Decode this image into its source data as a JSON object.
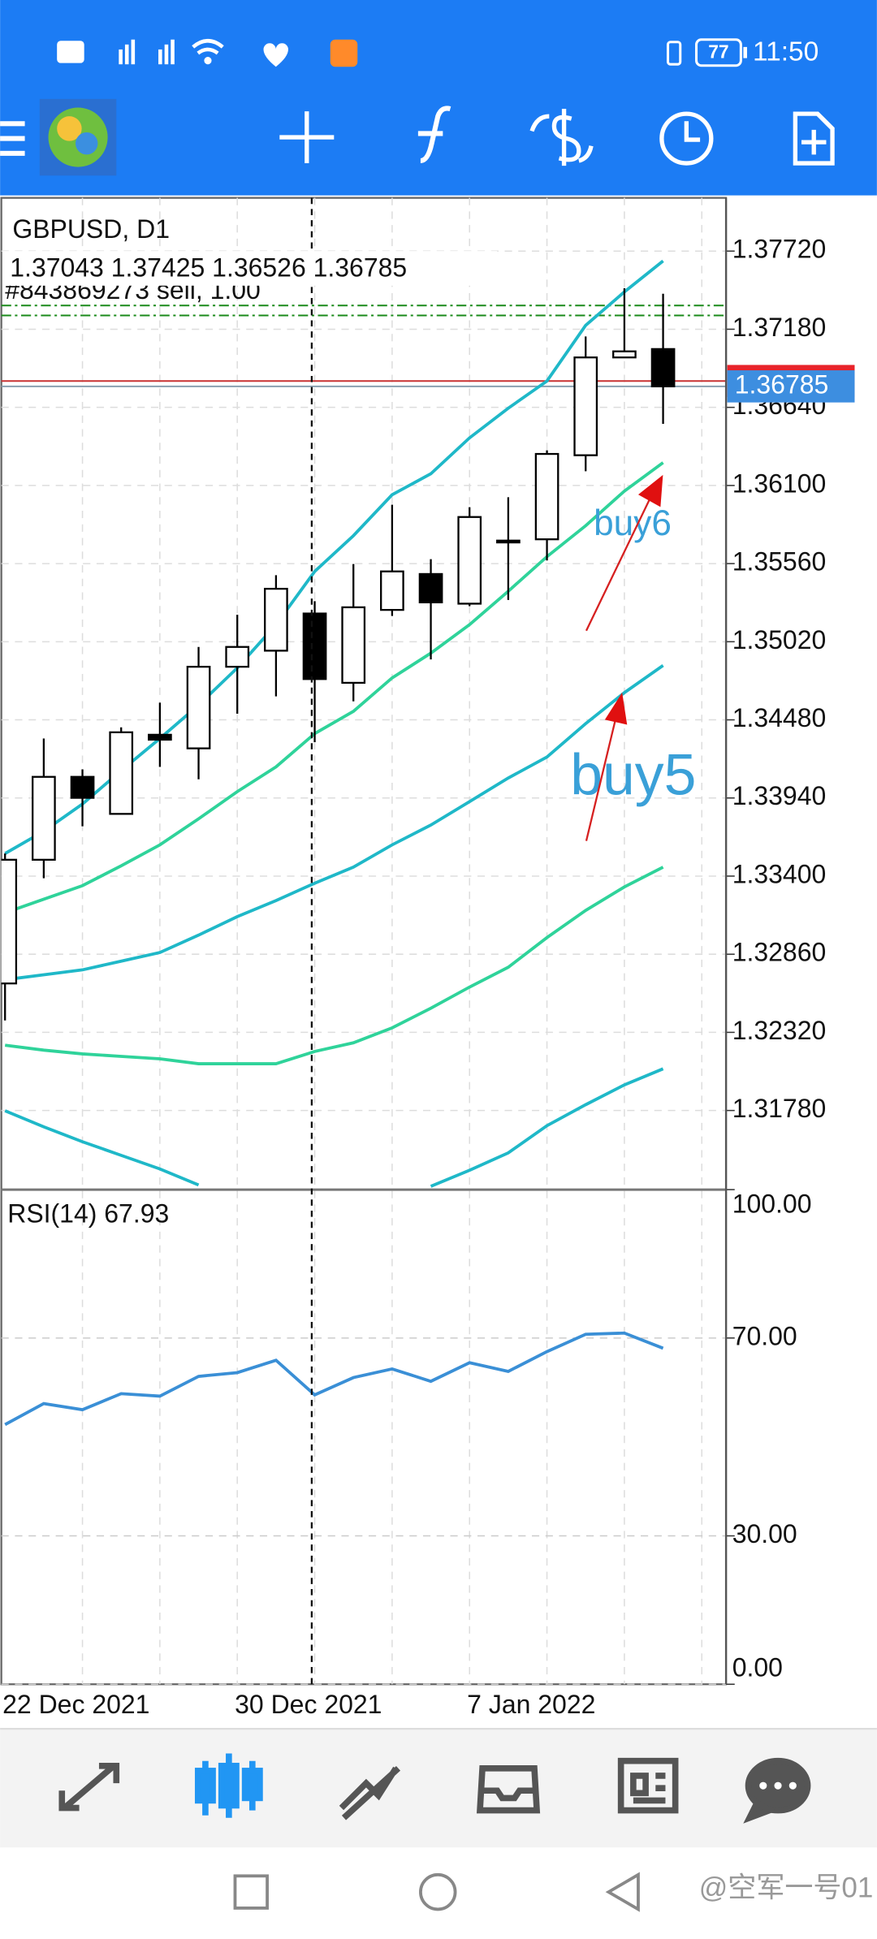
{
  "status_bar": {
    "time": "11:50",
    "battery": "77"
  },
  "watermark": "@空军一号01",
  "chart_data": [
    {
      "type": "candlestick",
      "title": "GBPUSD, D1",
      "subtitle": "1.37043 1.37425 1.36526 1.36785",
      "order_label": "#843869273 sell, 1.00",
      "annotations": [
        "buy6",
        "buy5"
      ],
      "categories": [
        "22 Dec 2021",
        null,
        null,
        null,
        null,
        null,
        "30 Dec 2021",
        null,
        null,
        null,
        null,
        null,
        "7 Jan 2022",
        null,
        null,
        null,
        null,
        null
      ],
      "open": [
        1.32658,
        1.33513,
        1.34086,
        1.3383,
        1.34377,
        1.34283,
        1.34847,
        1.34958,
        1.35215,
        1.34736,
        1.3524,
        1.35488,
        1.35283,
        1.35719,
        1.35728,
        1.36309,
        1.36985,
        1.37043
      ],
      "high": [
        1.33556,
        1.34351,
        1.34138,
        1.34428,
        1.34599,
        1.34984,
        1.35206,
        1.3548,
        1.353,
        1.35557,
        1.35967,
        1.35591,
        1.3595,
        1.36019,
        1.36343,
        1.3713,
        1.37463,
        1.37425
      ],
      "low": [
        1.32402,
        1.33385,
        1.33744,
        1.3383,
        1.34155,
        1.34069,
        1.34522,
        1.34642,
        1.34326,
        1.34608,
        1.35198,
        1.34898,
        1.35266,
        1.35309,
        1.35582,
        1.36198,
        1.36985,
        1.36526
      ],
      "close": [
        1.33513,
        1.34086,
        1.33941,
        1.34394,
        1.34343,
        1.34847,
        1.34984,
        1.35386,
        1.34762,
        1.35258,
        1.35506,
        1.35292,
        1.35882,
        1.35719,
        1.36318,
        1.36985,
        1.37027,
        1.36785
      ],
      "up_color": "#ffffff",
      "down_color": "#000000",
      "overlays": [
        {
          "color": "#1fb8c8",
          "values": [
            1.33556,
            1.3371,
            1.33898,
            1.34129,
            1.34351,
            1.34582,
            1.34839,
            1.35138,
            1.35506,
            1.35753,
            1.36036,
            1.36181,
            1.36429,
            1.36634,
            1.36822,
            1.37207,
            1.37438,
            1.37652
          ]
        },
        {
          "color": "#2fd39a",
          "values": [
            1.33146,
            1.3324,
            1.33334,
            1.33471,
            1.33616,
            1.33796,
            1.33984,
            1.34155,
            1.34385,
            1.34539,
            1.3477,
            1.34941,
            1.35138,
            1.35369,
            1.35608,
            1.35822,
            1.36061,
            1.36258
          ]
        },
        {
          "color": "#1fb8c8",
          "values": [
            1.32684,
            1.32718,
            1.32752,
            1.32812,
            1.32872,
            1.32992,
            1.3312,
            1.33231,
            1.33351,
            1.33462,
            1.33616,
            1.33753,
            1.33915,
            1.34078,
            1.34223,
            1.34454,
            1.34668,
            1.34856
          ]
        },
        {
          "color": "#2fd39a",
          "values": [
            1.32231,
            1.32197,
            1.32171,
            1.32154,
            1.32137,
            1.32103,
            1.32103,
            1.32103,
            1.32188,
            1.32248,
            1.32351,
            1.32487,
            1.32633,
            1.3277,
            1.32975,
            1.33163,
            1.33325,
            1.33462
          ]
        },
        {
          "color": "#1fb8c8",
          "values": [
            1.31778,
            1.31667,
            1.31564,
            1.3147,
            1.31376,
            1.31265,
            null,
            null,
            null,
            null,
            null,
            1.31256,
            1.31367,
            1.31487,
            1.31675,
            1.3182,
            1.31957,
            1.32068
          ]
        }
      ],
      "order_levels": [
        1.37344,
        1.37275
      ],
      "ask_price": 1.36822,
      "last_price": {
        "value": 1.36785,
        "label": "1.36785"
      },
      "ylim": [
        1.31233,
        1.38088
      ],
      "yticks": [
        {
          "value": 1.3772,
          "label": "1.37720"
        },
        {
          "value": 1.3718,
          "label": "1.37180"
        },
        {
          "value": 1.3664,
          "label": "1.36640"
        },
        {
          "value": 1.361,
          "label": "1.36100"
        },
        {
          "value": 1.3556,
          "label": "1.35560"
        },
        {
          "value": 1.3502,
          "label": "1.35020"
        },
        {
          "value": 1.3448,
          "label": "1.34480"
        },
        {
          "value": 1.3394,
          "label": "1.33940"
        },
        {
          "value": 1.334,
          "label": "1.33400"
        },
        {
          "value": 1.3286,
          "label": "1.32860"
        },
        {
          "value": 1.3232,
          "label": "1.32320"
        },
        {
          "value": 1.3178,
          "label": "1.31780"
        }
      ],
      "grid": true
    },
    {
      "type": "line",
      "title": "RSI(14) 67.93",
      "color": "#3a8fd6",
      "values": [
        52.5,
        56.75,
        55.5,
        58.75,
        58.25,
        62.25,
        63,
        65.5,
        58.5,
        62,
        63.75,
        61.25,
        65,
        63.25,
        67.25,
        70.75,
        71,
        67.93
      ],
      "ylim": [
        0,
        100
      ],
      "yticks": [
        {
          "value": 100,
          "label": "100.00"
        },
        {
          "value": 70,
          "label": "70.00"
        },
        {
          "value": 30,
          "label": "30.00"
        },
        {
          "value": 0,
          "label": "0.00"
        }
      ],
      "grid": true
    }
  ]
}
